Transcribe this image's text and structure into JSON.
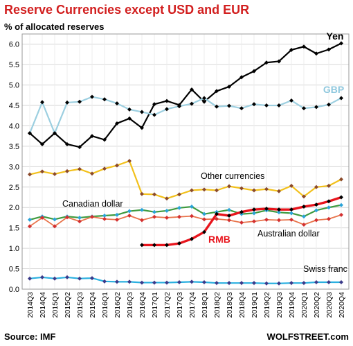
{
  "title": "Reserve Currencies except USD and EUR",
  "subtitle": "% of allocated reserves",
  "source": "Source: IMF",
  "brand": "WOLFSTREET.com",
  "chart_data": {
    "type": "line",
    "ylim": [
      0,
      6.25
    ],
    "yticks": [
      "0.0",
      "0.5",
      "1.0",
      "1.5",
      "2.0",
      "2.5",
      "3.0",
      "3.5",
      "4.0",
      "4.5",
      "5.0",
      "5.5",
      "6.0"
    ],
    "grid": true,
    "categories": [
      "2014Q3",
      "2014Q4",
      "2015Q1",
      "2015Q2",
      "2015Q3",
      "2015Q4",
      "2016Q1",
      "2016Q2",
      "2016Q3",
      "2016Q4",
      "2017Q1",
      "2017Q2",
      "2017Q3",
      "2017Q4",
      "2018Q1",
      "2018Q2",
      "2018Q3",
      "2018Q4",
      "2019Q1",
      "2019Q2",
      "2019Q3",
      "2019Q4",
      "2020Q1",
      "2020Q2",
      "2020Q3",
      "2020Q4"
    ],
    "series": [
      {
        "name": "Yen",
        "color": "#000000",
        "width": 2.2,
        "marker": "#000000",
        "values": [
          3.82,
          3.55,
          3.82,
          3.55,
          3.48,
          3.75,
          3.66,
          4.06,
          4.18,
          3.95,
          4.53,
          4.61,
          4.51,
          4.89,
          4.59,
          4.85,
          4.96,
          5.19,
          5.34,
          5.55,
          5.58,
          5.86,
          5.94,
          5.77,
          5.87,
          6.02
        ]
      },
      {
        "name": "GBP",
        "color": "#9ccfe0",
        "width": 2.2,
        "marker": "#000000",
        "values": [
          3.82,
          4.58,
          3.82,
          4.57,
          4.59,
          4.71,
          4.65,
          4.55,
          4.4,
          4.34,
          4.27,
          4.41,
          4.48,
          4.54,
          4.68,
          4.47,
          4.49,
          4.43,
          4.53,
          4.5,
          4.5,
          4.62,
          4.43,
          4.46,
          4.52,
          4.68
        ]
      },
      {
        "name": "Other currencies",
        "color": "#f2c01a",
        "width": 2.2,
        "marker": "#8b4a2b",
        "values": [
          2.81,
          2.88,
          2.82,
          2.89,
          2.94,
          2.83,
          2.95,
          3.03,
          3.14,
          2.33,
          2.32,
          2.22,
          2.32,
          2.42,
          2.44,
          2.42,
          2.52,
          2.47,
          2.42,
          2.45,
          2.4,
          2.53,
          2.27,
          2.5,
          2.53,
          2.69
        ]
      },
      {
        "name": "Canadian dollar",
        "color": "#3e9a3e",
        "width": 2.2,
        "marker": "#2aa3d8",
        "values": [
          1.7,
          1.78,
          1.71,
          1.78,
          1.75,
          1.78,
          1.8,
          1.82,
          1.91,
          1.94,
          1.89,
          1.92,
          1.99,
          2.02,
          1.84,
          1.89,
          1.94,
          1.84,
          1.86,
          1.93,
          1.88,
          1.86,
          1.78,
          1.93,
          2.0,
          2.06
        ]
      },
      {
        "name": "Australian dollar",
        "color": "#e8734a",
        "width": 1.8,
        "marker": "#d33030",
        "values": [
          1.54,
          1.75,
          1.54,
          1.76,
          1.66,
          1.77,
          1.72,
          1.7,
          1.8,
          1.69,
          1.77,
          1.75,
          1.77,
          1.79,
          1.71,
          1.72,
          1.69,
          1.63,
          1.66,
          1.7,
          1.69,
          1.7,
          1.58,
          1.69,
          1.72,
          1.82
        ]
      },
      {
        "name": "RMB",
        "color": "#e8141c",
        "width": 3.4,
        "marker": "#000000",
        "values": [
          null,
          null,
          null,
          null,
          null,
          null,
          null,
          null,
          null,
          1.08,
          1.08,
          1.08,
          1.12,
          1.23,
          1.4,
          1.84,
          1.8,
          1.89,
          1.95,
          1.97,
          1.95,
          1.95,
          2.02,
          2.07,
          2.15,
          2.25
        ]
      },
      {
        "name": "Swiss franc",
        "color": "#2ab0e0",
        "width": 2.2,
        "marker": "#3a3a8a",
        "values": [
          0.26,
          0.29,
          0.26,
          0.29,
          0.26,
          0.27,
          0.19,
          0.18,
          0.18,
          0.16,
          0.16,
          0.16,
          0.17,
          0.18,
          0.17,
          0.15,
          0.15,
          0.15,
          0.15,
          0.14,
          0.14,
          0.15,
          0.15,
          0.17,
          0.17,
          0.17
        ]
      }
    ],
    "series_labels": [
      {
        "text": "Yen",
        "color": "#000000",
        "bold": true
      },
      {
        "text": "GBP",
        "color": "#8fc8de",
        "bold": true
      },
      {
        "text": "Other currencies",
        "color": "#000000",
        "bold": false
      },
      {
        "text": "Canadian dollar",
        "color": "#000000",
        "bold": false
      },
      {
        "text": "Australian dollar",
        "color": "#000000",
        "bold": false
      },
      {
        "text": "RMB",
        "color": "#e8141c",
        "bold": true
      },
      {
        "text": "Swiss franc",
        "color": "#000000",
        "bold": false
      }
    ]
  }
}
